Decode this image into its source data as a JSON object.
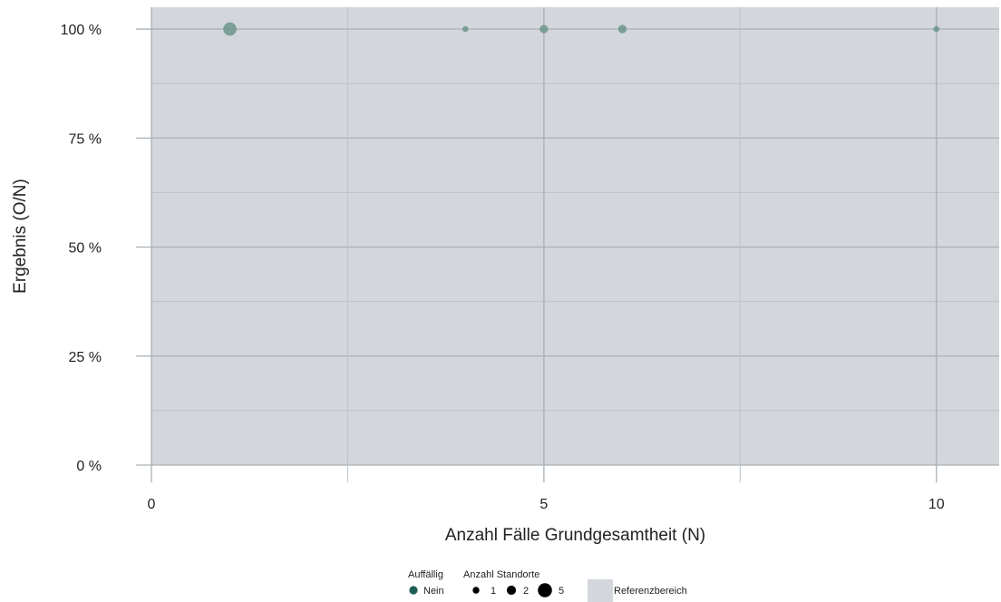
{
  "colors": {
    "reference_area": "#d3d7db",
    "grid_major": "#a9b0b5",
    "grid_minor": "#bcc2c6",
    "point": "#6d958c",
    "legend_point": "#1f5c57",
    "text": "#222222"
  },
  "chart_data": {
    "type": "scatter",
    "xlabel": "Anzahl Fälle Grundgesamtheit (N)",
    "ylabel": "Ergebnis (O/N)",
    "xlim": [
      0,
      10.8
    ],
    "ylim": [
      0,
      1.05
    ],
    "x_ticks": [
      0,
      5,
      10
    ],
    "x_tick_labels": [
      "0",
      "5",
      "10"
    ],
    "y_ticks": [
      0,
      0.25,
      0.5,
      0.75,
      1.0
    ],
    "y_tick_labels": [
      "0 %",
      "25 %",
      "50 %",
      "75 %",
      "100 %"
    ],
    "grid": true,
    "reference_range": [
      0,
      1.0
    ],
    "points": [
      {
        "x": 1,
        "y": 1.0,
        "count": 5,
        "auffaellig": "Nein"
      },
      {
        "x": 4,
        "y": 1.0,
        "count": 1,
        "auffaellig": "Nein"
      },
      {
        "x": 5,
        "y": 1.0,
        "count": 2,
        "auffaellig": "Nein"
      },
      {
        "x": 6,
        "y": 1.0,
        "count": 2,
        "auffaellig": "Nein"
      },
      {
        "x": 10,
        "y": 1.0,
        "count": 1,
        "auffaellig": "Nein"
      }
    ],
    "legend": {
      "position": "bottom",
      "auffaellig_title": "Auffällig",
      "auffaellig_items": [
        "Nein"
      ],
      "size_title": "Anzahl Standorte",
      "size_items": [
        "1",
        "2",
        "5"
      ],
      "reference_label": "Referenzbereich"
    }
  }
}
